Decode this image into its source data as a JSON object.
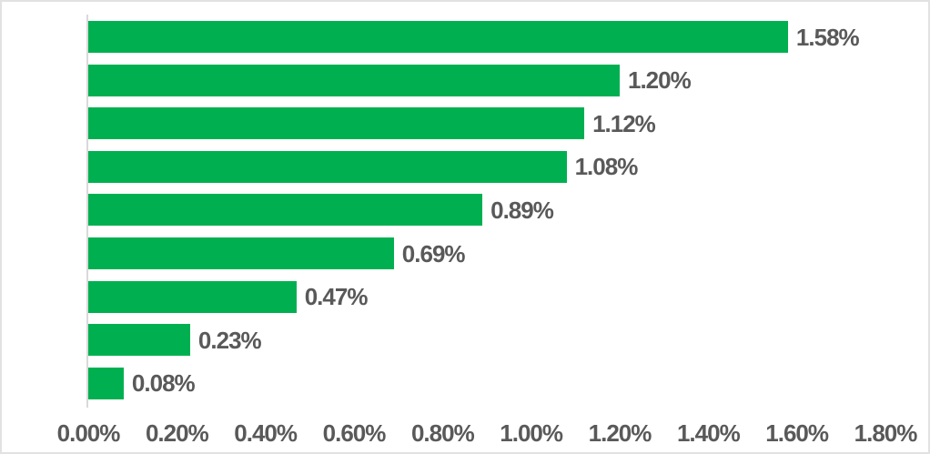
{
  "chart_data": {
    "type": "bar",
    "orientation": "horizontal",
    "title": "",
    "xlabel": "",
    "ylabel": "",
    "xlim": [
      0,
      1.8
    ],
    "grid": "off",
    "legend": "none",
    "x_tick_labels": [
      "0.00%",
      "0.20%",
      "0.40%",
      "0.60%",
      "0.80%",
      "1.00%",
      "1.20%",
      "1.40%",
      "1.60%",
      "1.80%"
    ],
    "bars": [
      {
        "value": 1.58,
        "label": "1.58%"
      },
      {
        "value": 1.2,
        "label": "1.20%"
      },
      {
        "value": 1.12,
        "label": "1.12%"
      },
      {
        "value": 1.08,
        "label": "1.08%"
      },
      {
        "value": 0.89,
        "label": "0.89%"
      },
      {
        "value": 0.69,
        "label": "0.69%"
      },
      {
        "value": 0.47,
        "label": "0.47%"
      },
      {
        "value": 0.23,
        "label": "0.23%"
      },
      {
        "value": 0.08,
        "label": "0.08%"
      }
    ],
    "colors": {
      "bar": "#00B050",
      "value_label": "#595959",
      "tick_label": "#595959",
      "axis_line": "#D9D9D9",
      "background": "#FFFFFF",
      "frame": "#E2E2E2"
    }
  }
}
